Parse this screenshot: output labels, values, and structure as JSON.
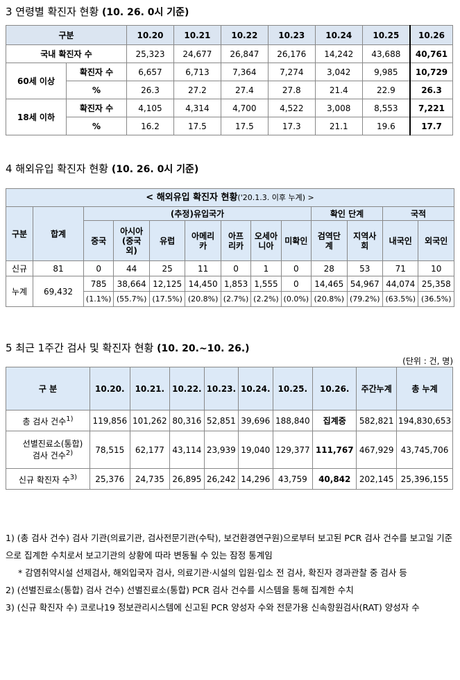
{
  "sec3": {
    "title": "3  연령별 확진자 현황",
    "sub": "(10. 26. 0시 기준)",
    "header": [
      "구분",
      "10.20",
      "10.21",
      "10.22",
      "10.23",
      "10.24",
      "10.25",
      "10.26"
    ],
    "domestic": {
      "label": "국내 확진자 수",
      "values": [
        "25,323",
        "24,677",
        "26,847",
        "26,176",
        "14,242",
        "43,688",
        "40,761"
      ]
    },
    "age60": {
      "label": "60세 이상",
      "rows": [
        {
          "label": "확진자 수",
          "values": [
            "6,657",
            "6,713",
            "7,364",
            "7,274",
            "3,042",
            "9,985",
            "10,729"
          ]
        },
        {
          "label": "%",
          "values": [
            "26.3",
            "27.2",
            "27.4",
            "27.8",
            "21.4",
            "22.9",
            "26.3"
          ]
        }
      ]
    },
    "age18": {
      "label": "18세 이하",
      "rows": [
        {
          "label": "확진자 수",
          "values": [
            "4,105",
            "4,314",
            "4,700",
            "4,522",
            "3,008",
            "8,553",
            "7,221"
          ]
        },
        {
          "label": "%",
          "values": [
            "16.2",
            "17.5",
            "17.5",
            "17.3",
            "21.1",
            "19.6",
            "17.7"
          ]
        }
      ]
    }
  },
  "sec4": {
    "title": "4  해외유입 확진자 현황",
    "sub": "(10. 26. 0시 기준)",
    "caption_a": "< 해외유입 확진자 현황",
    "caption_b": "('20.1.3. 이후 누계) >",
    "h_group": "구분",
    "h_total": "합계",
    "h_country": "(추정)유입국가",
    "h_stage": "확인 단계",
    "h_nation": "국적",
    "cols": [
      "중국",
      "아시아\n(중국\n외)",
      "유럽",
      "아메리\n카",
      "아프\n리카",
      "오세아\n니아",
      "미확인",
      "검역단\n계",
      "지역사\n회",
      "내국인",
      "외국인"
    ],
    "new": {
      "label": "신규",
      "total": "81",
      "values": [
        "0",
        "44",
        "25",
        "11",
        "0",
        "1",
        "0",
        "28",
        "53",
        "71",
        "10"
      ]
    },
    "cum": {
      "label": "누계",
      "total": "69,432",
      "values": [
        "785",
        "38,664",
        "12,125",
        "14,450",
        "1,853",
        "1,555",
        "0",
        "14,465",
        "54,967",
        "44,074",
        "25,358"
      ],
      "pct": [
        "(1.1%)",
        "(55.7%)",
        "(17.5%)",
        "(20.8%)",
        "(2.7%)",
        "(2.2%)",
        "(0.0%)",
        "(20.8%)",
        "(79.2%)",
        "(63.5%)",
        "(36.5%)"
      ]
    }
  },
  "sec5": {
    "title": "5  최근 1주간 검사 및 확진자 현황",
    "sub": "(10. 20.~10. 26.)",
    "unit": "(단위 : 건, 명)",
    "header": [
      "구 분",
      "10.20.",
      "10.21.",
      "10.22.",
      "10.23.",
      "10.24.",
      "10.25.",
      "10.26.",
      "주간누계",
      "총 누계"
    ],
    "rows": [
      {
        "label": "총 검사 건수",
        "sup": "1)",
        "values": [
          "119,856",
          "101,262",
          "80,316",
          "52,851",
          "39,696",
          "188,840",
          "집계중",
          "582,821",
          "194,830,653"
        ]
      },
      {
        "label": "선별진료소(통합)\n검사 건수",
        "sup": "2)",
        "values": [
          "78,515",
          "62,177",
          "43,114",
          "23,939",
          "19,040",
          "129,377",
          "111,767",
          "467,929",
          "43,745,706"
        ]
      },
      {
        "label": "신규 확진자 수",
        "sup": "3)",
        "values": [
          "25,376",
          "24,735",
          "26,895",
          "26,242",
          "14,296",
          "43,759",
          "40,842",
          "202,145",
          "25,396,155"
        ]
      }
    ]
  },
  "notes": {
    "n1": "1) (총 검사 건수) 검사 기관(의료기관, 검사전문기관(수탁), 보건환경연구원)으로부터 보고된 PCR 검사 건수를 보고일 기준으로 집계한 수치로서 보고기관의 상황에 따라 변동될 수 있는 잠정 통계임",
    "n1b": "* 감염취약시설 선제검사, 해외입국자 검사, 의료기관·시설의 입원·입소 전 검사, 확진자 경과관찰 중 검사 등",
    "n2": "2) (선별진료소(통합) 검사 건수) 선별진료소(통합) PCR 검사 건수를 시스템을 통해 집계한 수치",
    "n3": "3) (신규 확진자 수) 코로나19 정보관리시스템에 신고된 PCR 양성자 수와 전문가용 신속항원검사(RAT) 양성자 수"
  }
}
